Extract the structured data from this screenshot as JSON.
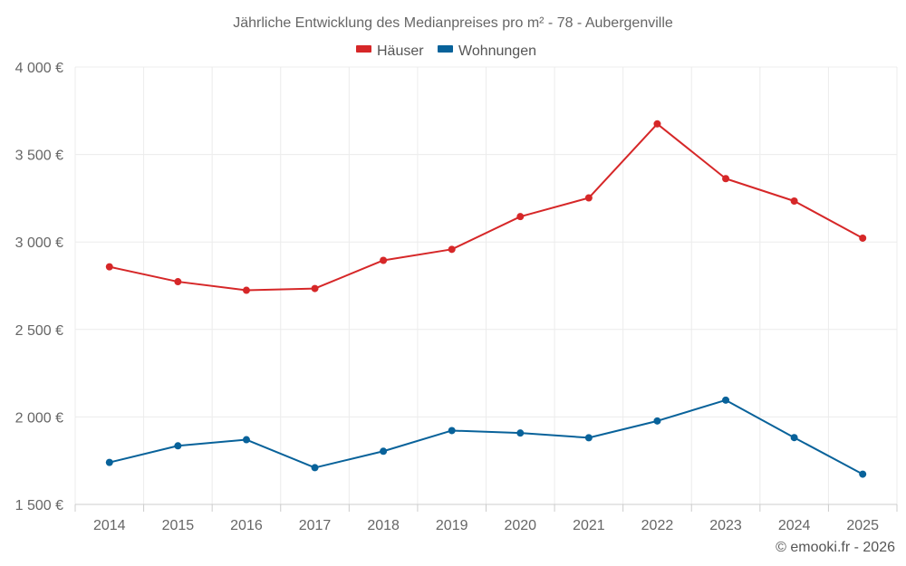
{
  "chart_data": {
    "type": "line",
    "title": "Jährliche Entwicklung des Medianpreises pro m² - 78 - Aubergenville",
    "xlabel": "",
    "ylabel": "",
    "categories": [
      "2014",
      "2015",
      "2016",
      "2017",
      "2018",
      "2019",
      "2020",
      "2021",
      "2022",
      "2023",
      "2024",
      "2025"
    ],
    "ylim": [
      1500,
      4000
    ],
    "yticks": [
      1500,
      2000,
      2500,
      3000,
      3500,
      4000
    ],
    "ytick_labels": [
      "1 500 €",
      "2 000 €",
      "2 500 €",
      "3 000 €",
      "3 500 €",
      "4 000 €"
    ],
    "grid": true,
    "legend_position": "top-center",
    "series": [
      {
        "name": "Häuser",
        "color": "#d62728",
        "values": [
          2858,
          2773,
          2724,
          2734,
          2895,
          2958,
          3145,
          3252,
          3675,
          3362,
          3234,
          3022
        ]
      },
      {
        "name": "Wohnungen",
        "color": "#08629a",
        "values": [
          1740,
          1835,
          1870,
          1710,
          1804,
          1922,
          1908,
          1881,
          1977,
          2096,
          1882,
          1673
        ]
      }
    ]
  },
  "footer": {
    "copyright": "© emooki.fr - 2026"
  }
}
